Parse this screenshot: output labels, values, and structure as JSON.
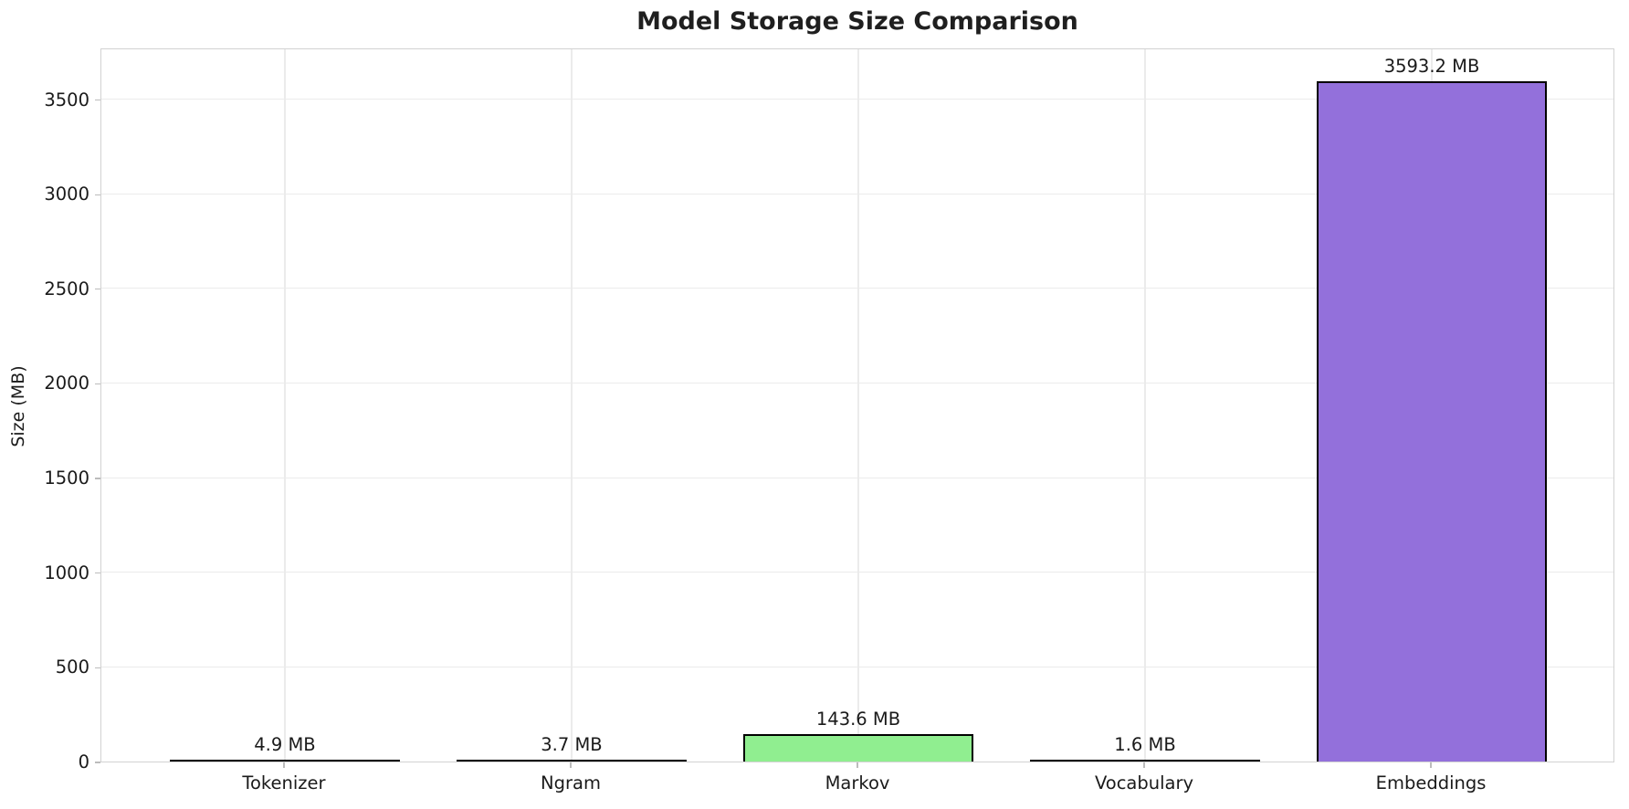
{
  "title": "Model Storage Size Comparison",
  "chart_data": {
    "type": "bar",
    "title": "Model Storage Size Comparison",
    "xlabel": "",
    "ylabel": "Size (MB)",
    "categories": [
      "Tokenizer",
      "Ngram",
      "Markov",
      "Vocabulary",
      "Embeddings"
    ],
    "values": [
      4.9,
      3.7,
      143.6,
      1.6,
      3593.2
    ],
    "value_labels": [
      "4.9 MB",
      "3.7 MB",
      "143.6 MB",
      "1.6 MB",
      "3593.2 MB"
    ],
    "bar_colors": [
      "#87CEEB",
      "#F08080",
      "#90EE90",
      "#FFD700",
      "#9370DB"
    ],
    "bar_edge_color": "#000000",
    "yticks": [
      0,
      500,
      1000,
      1500,
      2000,
      2500,
      3000,
      3500
    ],
    "ylim": [
      0,
      3772.9
    ],
    "grid": true,
    "legend": false,
    "background_color": "#ffffff",
    "grid_color": "#ebebeb",
    "spine_color": "#d2d2d2"
  }
}
